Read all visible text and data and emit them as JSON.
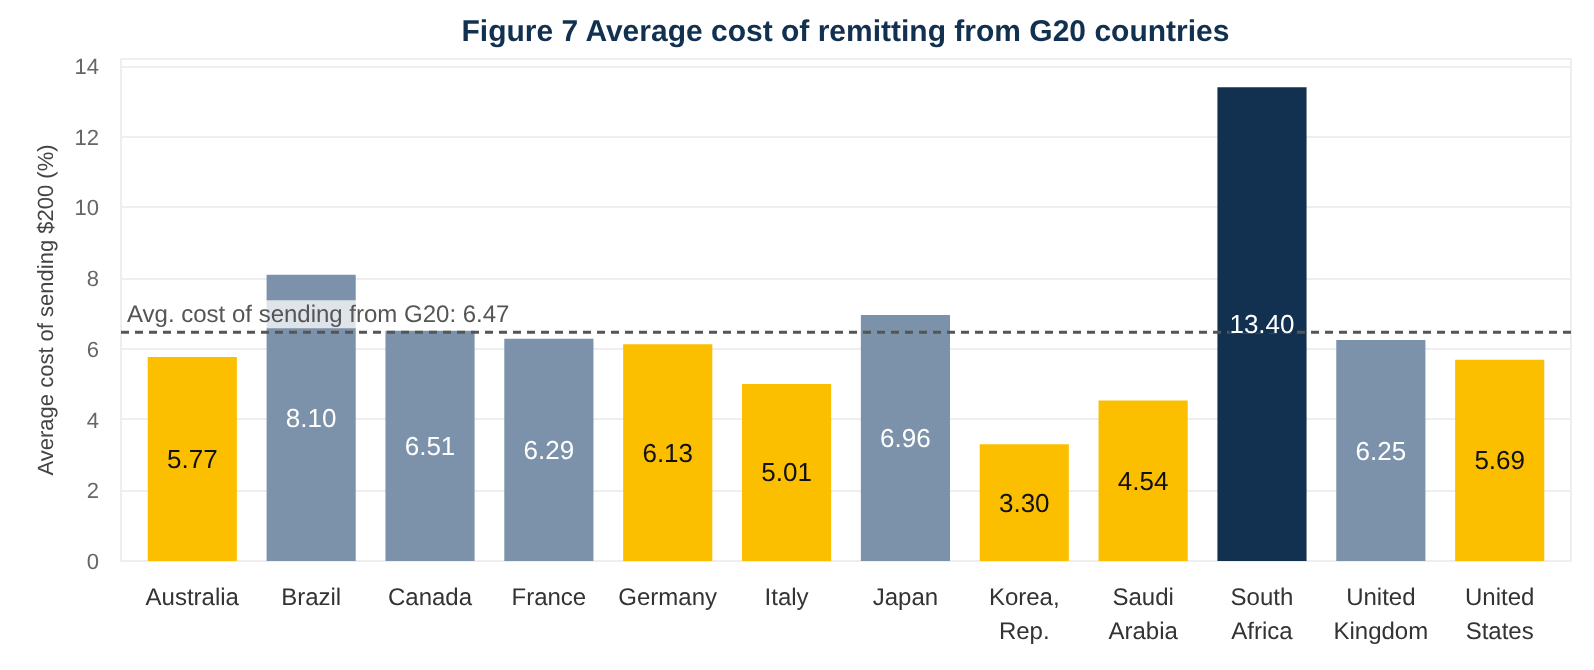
{
  "chart_data": {
    "type": "bar",
    "title": "Figure 7 Average cost of remitting from G20 countries",
    "ylabel": "Average cost of sending $200 (%)",
    "categories": [
      "Australia",
      "Brazil",
      "Canada",
      "France",
      "Germany",
      "Italy",
      "Japan",
      "Korea, Rep.",
      "Saudi Arabia",
      "South Africa",
      "United Kingdom",
      "United States"
    ],
    "values": [
      5.77,
      8.1,
      6.51,
      6.29,
      6.13,
      5.01,
      6.96,
      3.3,
      4.54,
      13.4,
      6.25,
      5.69
    ],
    "colors": [
      "#fbbf00",
      "#7b92aa",
      "#7b92aa",
      "#7b92aa",
      "#fbbf00",
      "#fbbf00",
      "#7b92aa",
      "#fbbf00",
      "#fbbf00",
      "#12304f",
      "#7b92aa",
      "#fbbf00"
    ],
    "value_labels": [
      "5.77",
      "8.10",
      "6.51",
      "6.29",
      "6.13",
      "5.01",
      "6.96",
      "3.30",
      "4.54",
      "13.40",
      "6.25",
      "5.69"
    ],
    "ylim": [
      0,
      14.2
    ],
    "yticks": [
      0,
      2,
      4,
      6,
      8,
      10,
      12,
      14
    ],
    "grid": "y",
    "ref_lines": [
      {
        "axis": "y",
        "value": 6.47,
        "label": "Avg. cost of sending from G20: 6.47",
        "color": "#555555",
        "line_style": "dashed"
      }
    ]
  }
}
